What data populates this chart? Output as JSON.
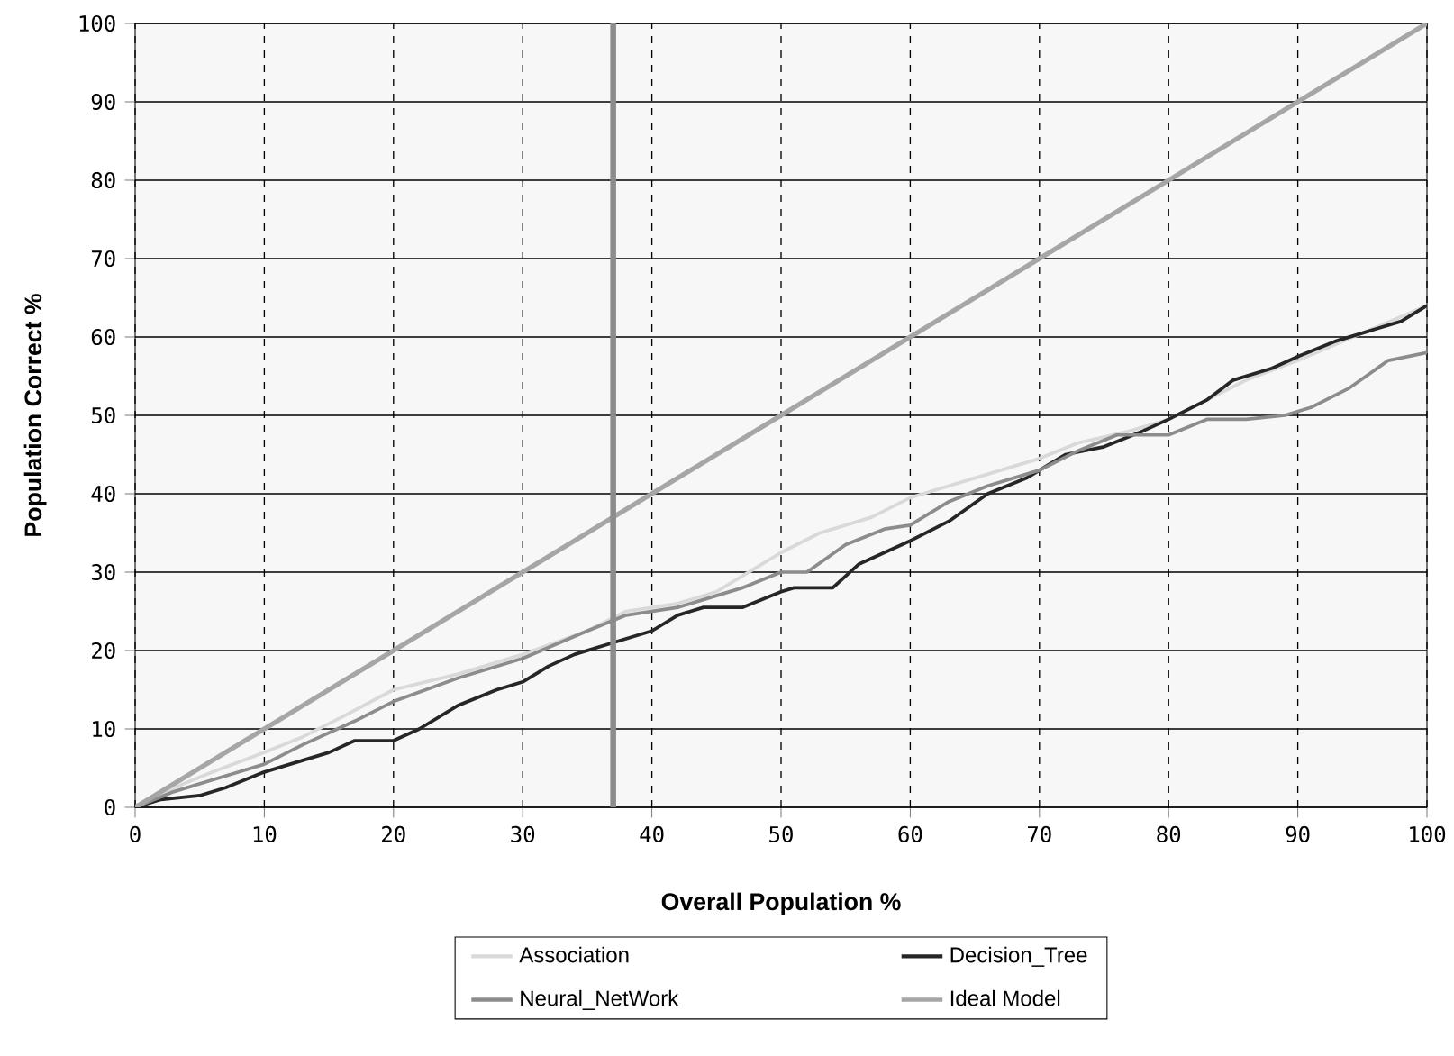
{
  "chart_data": {
    "type": "line",
    "xlabel": "Overall Population %",
    "ylabel": "Population Correct %",
    "xlim": [
      0,
      100
    ],
    "ylim": [
      0,
      100
    ],
    "xticks": [
      0,
      10,
      20,
      30,
      40,
      50,
      60,
      70,
      80,
      90,
      100
    ],
    "yticks": [
      0,
      10,
      20,
      30,
      40,
      50,
      60,
      70,
      80,
      90,
      100
    ],
    "grid": true,
    "legend": "bottom",
    "marker": "none",
    "line_style": "solid",
    "ref_lines": [
      {
        "axis": "x",
        "value": 37,
        "color": "#8c8c8c"
      }
    ],
    "series": [
      {
        "name": "Association",
        "color": "#d9d9d9",
        "x": [
          0,
          3,
          6,
          10,
          13,
          16,
          20,
          25,
          30,
          35,
          38,
          42,
          45,
          48,
          50,
          53,
          57,
          60,
          63,
          67,
          70,
          73,
          77,
          80,
          83,
          86,
          90,
          95,
          100
        ],
        "values": [
          0,
          2.5,
          4.5,
          7,
          9,
          11.5,
          15,
          17,
          19.5,
          22.5,
          25,
          26,
          27.5,
          30.5,
          32.5,
          35,
          37,
          39.5,
          41,
          43,
          44.5,
          46.5,
          48,
          49.5,
          52,
          54.5,
          57,
          60.5,
          64
        ]
      },
      {
        "name": "Decision_Tree",
        "color": "#262626",
        "x": [
          0,
          2,
          5,
          7,
          10,
          12,
          15,
          17,
          20,
          22,
          25,
          28,
          30,
          32,
          34,
          37,
          40,
          42,
          44,
          47,
          50,
          51,
          54,
          56,
          58,
          60,
          63,
          66,
          69,
          72,
          75,
          78,
          80,
          83,
          85,
          88,
          90,
          93,
          96,
          98,
          100
        ],
        "values": [
          0,
          1,
          1.5,
          2.5,
          4.5,
          5.5,
          7,
          8.5,
          8.5,
          10,
          13,
          15,
          16,
          18,
          19.5,
          21,
          22.5,
          24.5,
          25.5,
          25.5,
          27.5,
          28,
          28,
          31,
          32.5,
          34,
          36.5,
          40,
          42,
          45,
          46,
          48,
          49.5,
          52,
          54.5,
          56,
          57.5,
          59.5,
          61,
          62,
          64
        ]
      },
      {
        "name": "Neural_NetWork",
        "color": "#8c8c8c",
        "x": [
          0,
          3,
          6,
          10,
          13,
          17,
          20,
          25,
          30,
          35,
          38,
          42,
          45,
          47,
          50,
          52,
          55,
          58,
          60,
          63,
          66,
          70,
          73,
          76,
          80,
          83,
          86,
          89,
          91,
          94,
          97,
          100
        ],
        "values": [
          0,
          2,
          3.5,
          5.5,
          8,
          11,
          13.5,
          16.5,
          19,
          22.5,
          24.5,
          25.5,
          27,
          28,
          30,
          30,
          33.5,
          35.5,
          36,
          39,
          41,
          43,
          45.5,
          47.5,
          47.5,
          49.5,
          49.5,
          50,
          51,
          53.5,
          57,
          58
        ]
      },
      {
        "name": "Ideal Model",
        "color": "#a6a6a6",
        "x": [
          0,
          100
        ],
        "values": [
          0,
          100
        ]
      }
    ]
  }
}
